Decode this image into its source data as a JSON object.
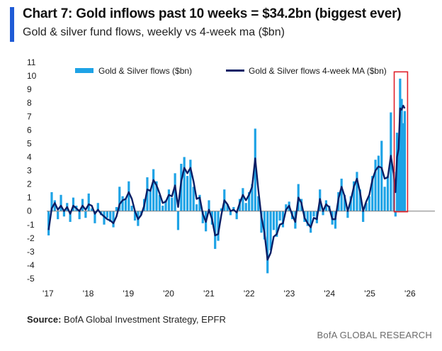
{
  "header": {
    "title": "Chart 7: Gold inflows past 10 weeks = $34.2bn (biggest ever)",
    "subtitle": "Gold & silver fund flows, weekly vs 4-week ma ($bn)"
  },
  "footer": {
    "source_label": "Source:",
    "source_text": " BofA Global Investment Strategy, EPFR",
    "brand": "BofA GLOBAL RESEARCH"
  },
  "colors": {
    "accent": "#1f5bd6",
    "bars": "#1ea3e6",
    "ma_line": "#0b1f66",
    "highlight_box": "#e0212b",
    "axis": "#7f7f7f"
  },
  "chart_data": {
    "type": "bar",
    "series": [
      {
        "name": "Gold & Silver flows ($bn)",
        "kind": "bar",
        "x": [
          "2017-01-06",
          "2017-02-03",
          "2017-03-03",
          "2017-03-31",
          "2017-04-28",
          "2017-05-26",
          "2017-06-23",
          "2017-07-21",
          "2017-08-18",
          "2017-09-15",
          "2017-10-13",
          "2017-11-10",
          "2017-12-08",
          "2018-01-05",
          "2018-02-02",
          "2018-03-02",
          "2018-03-30",
          "2018-04-27",
          "2018-05-25",
          "2018-06-22",
          "2018-07-20",
          "2018-08-17",
          "2018-09-14",
          "2018-10-12",
          "2018-11-09",
          "2018-12-07",
          "2019-01-04",
          "2019-02-01",
          "2019-03-01",
          "2019-03-29",
          "2019-04-26",
          "2019-05-24",
          "2019-06-21",
          "2019-07-19",
          "2019-08-16",
          "2019-09-13",
          "2019-10-11",
          "2019-11-08",
          "2019-12-06",
          "2020-01-03",
          "2020-01-31",
          "2020-02-28",
          "2020-03-27",
          "2020-04-24",
          "2020-05-22",
          "2020-06-19",
          "2020-07-17",
          "2020-08-14",
          "2020-09-11",
          "2020-10-09",
          "2020-11-06",
          "2020-12-04",
          "2021-01-01",
          "2021-01-29",
          "2021-02-26",
          "2021-03-26",
          "2021-04-23",
          "2021-05-21",
          "2021-06-18",
          "2021-07-16",
          "2021-08-13",
          "2021-09-10",
          "2021-10-08",
          "2021-11-05",
          "2021-12-03",
          "2021-12-31",
          "2022-01-28",
          "2022-02-25",
          "2022-03-25",
          "2022-04-22",
          "2022-05-20",
          "2022-06-17",
          "2022-07-15",
          "2022-08-12",
          "2022-09-09",
          "2022-10-07",
          "2022-11-04",
          "2022-12-02",
          "2022-12-30",
          "2023-01-27",
          "2023-02-24",
          "2023-03-24",
          "2023-04-21",
          "2023-05-19",
          "2023-06-16",
          "2023-07-14",
          "2023-08-11",
          "2023-09-08",
          "2023-10-06",
          "2023-11-03",
          "2023-12-01",
          "2023-12-29",
          "2024-01-26",
          "2024-02-23",
          "2024-03-22",
          "2024-04-19",
          "2024-05-17",
          "2024-06-14",
          "2024-07-12",
          "2024-08-09",
          "2024-09-06",
          "2024-10-04",
          "2024-11-01",
          "2024-11-29",
          "2024-12-27",
          "2025-01-24",
          "2025-02-21",
          "2025-03-21",
          "2025-04-18",
          "2025-05-16",
          "2025-06-13",
          "2025-07-11",
          "2025-08-08",
          "2025-08-22",
          "2025-09-05",
          "2025-09-19",
          "2025-10-03",
          "2025-10-17",
          "2025-10-31",
          "2025-11-14"
        ],
        "values": [
          -1.8,
          1.4,
          0.8,
          -0.6,
          1.2,
          -0.4,
          0.6,
          -0.8,
          1.0,
          0.4,
          -0.6,
          0.9,
          -0.5,
          1.3,
          0.2,
          -0.9,
          0.6,
          -0.3,
          -1.0,
          -0.5,
          -0.8,
          -1.2,
          0.3,
          1.8,
          1.1,
          0.9,
          2.2,
          0.4,
          -0.7,
          -1.1,
          -0.3,
          0.9,
          2.5,
          1.6,
          3.1,
          2.2,
          1.2,
          0.4,
          0.8,
          1.6,
          1.0,
          2.8,
          -1.4,
          3.5,
          4.0,
          2.6,
          3.8,
          1.8,
          0.5,
          1.2,
          -0.9,
          -1.5,
          0.8,
          -1.0,
          -2.8,
          -2.2,
          0.2,
          1.6,
          0.5,
          -0.3,
          0.3,
          -0.6,
          0.9,
          1.7,
          0.6,
          1.4,
          2.0,
          6.1,
          1.1,
          -1.6,
          -2.1,
          -4.6,
          -2.9,
          -1.4,
          -1.9,
          -0.7,
          -1.2,
          0.5,
          0.7,
          -0.6,
          -1.3,
          2.0,
          0.9,
          -0.8,
          -1.1,
          -1.6,
          -0.4,
          -0.9,
          1.6,
          -0.3,
          0.8,
          0.4,
          -1.0,
          -1.3,
          1.4,
          2.4,
          1.2,
          -0.5,
          1.1,
          2.2,
          2.9,
          1.6,
          -0.8,
          0.6,
          1.1,
          2.6,
          3.8,
          4.1,
          5.2,
          1.8,
          2.6,
          7.3,
          2.9,
          -0.4,
          5.8,
          4.9,
          9.8,
          8.3,
          6.5,
          7.4
        ],
        "y_range": [
          -5,
          11
        ]
      },
      {
        "name": "Gold & Silver flows 4-week MA ($bn)",
        "kind": "line",
        "x": [
          "2017-01-06",
          "2017-02-03",
          "2017-03-03",
          "2017-03-31",
          "2017-04-28",
          "2017-05-26",
          "2017-06-23",
          "2017-07-21",
          "2017-08-18",
          "2017-09-15",
          "2017-10-13",
          "2017-11-10",
          "2017-12-08",
          "2018-01-05",
          "2018-02-02",
          "2018-03-02",
          "2018-03-30",
          "2018-04-27",
          "2018-05-25",
          "2018-06-22",
          "2018-07-20",
          "2018-08-17",
          "2018-09-14",
          "2018-10-12",
          "2018-11-09",
          "2018-12-07",
          "2019-01-04",
          "2019-02-01",
          "2019-03-01",
          "2019-03-29",
          "2019-04-26",
          "2019-05-24",
          "2019-06-21",
          "2019-07-19",
          "2019-08-16",
          "2019-09-13",
          "2019-10-11",
          "2019-11-08",
          "2019-12-06",
          "2020-01-03",
          "2020-01-31",
          "2020-02-28",
          "2020-03-27",
          "2020-04-24",
          "2020-05-22",
          "2020-06-19",
          "2020-07-17",
          "2020-08-14",
          "2020-09-11",
          "2020-10-09",
          "2020-11-06",
          "2020-12-04",
          "2021-01-01",
          "2021-01-29",
          "2021-02-26",
          "2021-03-26",
          "2021-04-23",
          "2021-05-21",
          "2021-06-18",
          "2021-07-16",
          "2021-08-13",
          "2021-09-10",
          "2021-10-08",
          "2021-11-05",
          "2021-12-03",
          "2021-12-31",
          "2022-01-28",
          "2022-02-25",
          "2022-03-25",
          "2022-04-22",
          "2022-05-20",
          "2022-06-17",
          "2022-07-15",
          "2022-08-12",
          "2022-09-09",
          "2022-10-07",
          "2022-11-04",
          "2022-12-02",
          "2022-12-30",
          "2023-01-27",
          "2023-02-24",
          "2023-03-24",
          "2023-04-21",
          "2023-05-19",
          "2023-06-16",
          "2023-07-14",
          "2023-08-11",
          "2023-09-08",
          "2023-10-06",
          "2023-11-03",
          "2023-12-01",
          "2023-12-29",
          "2024-01-26",
          "2024-02-23",
          "2024-03-22",
          "2024-04-19",
          "2024-05-17",
          "2024-06-14",
          "2024-07-12",
          "2024-08-09",
          "2024-09-06",
          "2024-10-04",
          "2024-11-01",
          "2024-11-29",
          "2024-12-27",
          "2025-01-24",
          "2025-02-21",
          "2025-03-21",
          "2025-04-18",
          "2025-05-16",
          "2025-06-13",
          "2025-07-11",
          "2025-08-08",
          "2025-08-22",
          "2025-09-05",
          "2025-09-19",
          "2025-10-03",
          "2025-10-17",
          "2025-10-31",
          "2025-11-14"
        ],
        "values": [
          -1.4,
          0.2,
          0.6,
          0.1,
          0.4,
          0.0,
          0.3,
          -0.2,
          0.4,
          0.2,
          0.0,
          0.4,
          0.1,
          0.5,
          0.4,
          -0.2,
          0.1,
          -0.2,
          -0.4,
          -0.6,
          -0.7,
          -0.9,
          -0.4,
          0.5,
          0.8,
          0.9,
          1.4,
          0.9,
          0.0,
          -0.6,
          -0.3,
          0.4,
          1.6,
          1.5,
          2.3,
          1.9,
          1.3,
          0.6,
          0.7,
          1.2,
          1.1,
          1.9,
          0.3,
          2.2,
          3.2,
          2.8,
          3.2,
          2.2,
          0.9,
          1.0,
          -0.2,
          -0.8,
          0.1,
          -0.6,
          -1.8,
          -1.7,
          -0.3,
          0.8,
          0.5,
          0.0,
          0.1,
          -0.1,
          0.6,
          1.2,
          0.8,
          1.2,
          1.8,
          3.9,
          1.6,
          -0.4,
          -1.6,
          -3.6,
          -3.1,
          -1.9,
          -1.7,
          -1.0,
          -0.9,
          0.1,
          0.4,
          -0.3,
          -0.8,
          1.0,
          0.6,
          -0.5,
          -0.9,
          -1.2,
          -0.5,
          -0.6,
          0.9,
          0.0,
          0.5,
          0.3,
          -0.6,
          -0.6,
          0.9,
          1.8,
          1.1,
          0.0,
          0.8,
          1.8,
          2.4,
          1.4,
          0.0,
          0.7,
          1.2,
          2.3,
          3.0,
          3.3,
          3.2,
          2.4,
          2.5,
          4.1,
          2.6,
          1.4,
          4.0,
          4.6,
          7.6,
          7.5,
          7.8,
          7.6
        ],
        "y_range": [
          -5,
          11
        ]
      }
    ],
    "y_ticks": [
      -5,
      -4,
      -3,
      -2,
      -1,
      0,
      1,
      2,
      3,
      4,
      5,
      6,
      7,
      8,
      9,
      10,
      11
    ],
    "x_ticks": [
      {
        "date": "2017-01-01",
        "label": "'17"
      },
      {
        "date": "2018-01-01",
        "label": "'18"
      },
      {
        "date": "2019-01-01",
        "label": "'19"
      },
      {
        "date": "2020-01-01",
        "label": "'20"
      },
      {
        "date": "2021-01-01",
        "label": "'21"
      },
      {
        "date": "2022-01-01",
        "label": "'22"
      },
      {
        "date": "2023-01-01",
        "label": "'23"
      },
      {
        "date": "2024-01-01",
        "label": "'24"
      },
      {
        "date": "2025-01-01",
        "label": "'25"
      },
      {
        "date": "2026-01-01",
        "label": "'26"
      }
    ],
    "x_range": [
      "2016-12-20",
      "2026-08-15"
    ],
    "ylim": [
      -5,
      11
    ],
    "highlight": {
      "from": "2025-09-05",
      "to": "2025-11-14",
      "y_from": -0.05,
      "y_to": 10.3
    },
    "grid": false,
    "legend_position": "top"
  }
}
